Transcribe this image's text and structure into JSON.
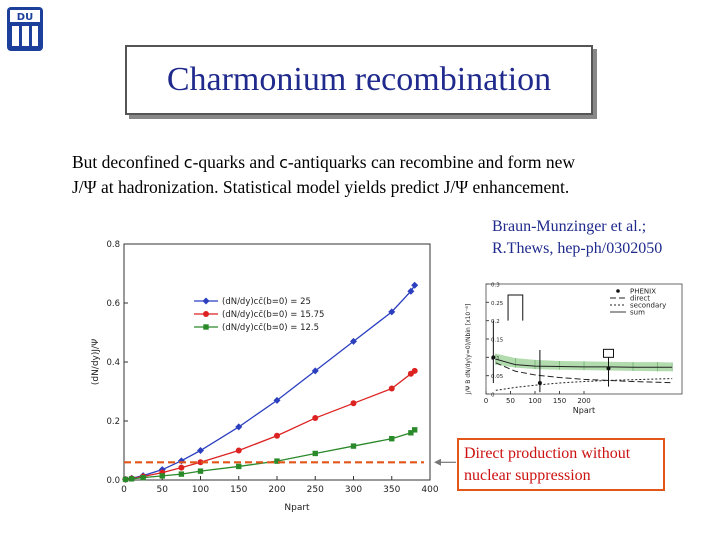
{
  "logo": {
    "letters": "DU"
  },
  "title": "Charmonium recombination",
  "intro": {
    "part1": "But deconfined ",
    "c1": "c",
    "part2": "-quarks and ",
    "c2": "c",
    "part3": "-antiquarks can recombine and form new",
    "line2": "J/Ψ at hadronization. Statistical model yields predict J/Ψ enhancement."
  },
  "citation": {
    "line1": "Braun-Munzinger et al.;",
    "line2": "R.Thews, hep-ph/0302050"
  },
  "callout": {
    "line1": "Direct production without",
    "line2": "nuclear suppression"
  },
  "colors": {
    "title": "#1f2a8c",
    "callout_border": "#e2561a",
    "callout_text": "#cc1111",
    "series_blue": "#2b3fbf",
    "series_red": "#dd2222",
    "series_green": "#2a8a2a"
  },
  "chart_data": [
    {
      "type": "line",
      "title": "",
      "xlabel": "Npart",
      "ylabel": "(dN/dy)J/Ψ",
      "xlim": [
        0,
        400
      ],
      "ylim": [
        0,
        0.8
      ],
      "xticks": [
        "0",
        "50",
        "100",
        "150",
        "200",
        "250",
        "300",
        "350",
        "400"
      ],
      "yticks": [
        "0.0",
        "0.2",
        "0.4",
        "0.6",
        "0.8"
      ],
      "legend_position": "upper-left",
      "reference_level": 0.06,
      "series": [
        {
          "name": "(dN/dy)cc̄(b=0) = 25",
          "marker": "diamond",
          "x": [
            2,
            10,
            25,
            50,
            75,
            100,
            150,
            200,
            250,
            300,
            350,
            375,
            380
          ],
          "y": [
            0.002,
            0.006,
            0.015,
            0.035,
            0.065,
            0.1,
            0.18,
            0.27,
            0.37,
            0.47,
            0.57,
            0.64,
            0.66
          ]
        },
        {
          "name": "(dN/dy)cc̄(b=0) = 15.75",
          "marker": "circle",
          "x": [
            2,
            10,
            25,
            50,
            75,
            100,
            150,
            200,
            250,
            300,
            350,
            375,
            380
          ],
          "y": [
            0.002,
            0.005,
            0.012,
            0.025,
            0.042,
            0.06,
            0.1,
            0.15,
            0.21,
            0.26,
            0.31,
            0.36,
            0.37
          ]
        },
        {
          "name": "(dN/dy)cc̄(b=0) = 12.5",
          "marker": "square",
          "x": [
            2,
            10,
            25,
            50,
            75,
            100,
            150,
            200,
            250,
            300,
            350,
            375,
            380
          ],
          "y": [
            0.002,
            0.004,
            0.008,
            0.014,
            0.02,
            0.03,
            0.046,
            0.064,
            0.09,
            0.115,
            0.14,
            0.16,
            0.17
          ]
        }
      ]
    },
    {
      "type": "line",
      "title": "",
      "xlabel": "Npart",
      "ylabel": "J/Ψ B dN/dy(y=0)/Nbin [x10⁻⁶]",
      "xlim": [
        0,
        400
      ],
      "ylim": [
        0,
        0.3
      ],
      "xticks": [
        "0",
        "50",
        "100",
        "150",
        "200"
      ],
      "yticks": [
        "0.3",
        "0.25",
        "0.2",
        "0.15",
        "0.1",
        "0.05",
        "0"
      ],
      "legend_position": "top-right",
      "legend": [
        "PHENIX",
        "direct",
        "secondary",
        "sum"
      ],
      "band": {
        "x": [
          20,
          60,
          100,
          150,
          200,
          250,
          300,
          350,
          380
        ],
        "low": [
          0.08,
          0.072,
          0.068,
          0.066,
          0.065,
          0.064,
          0.063,
          0.062,
          0.062
        ],
        "high": [
          0.11,
          0.098,
          0.093,
          0.09,
          0.089,
          0.088,
          0.087,
          0.087,
          0.086
        ]
      },
      "direct": {
        "x": [
          20,
          60,
          100,
          150,
          200,
          250,
          300,
          350,
          380
        ],
        "y": [
          0.085,
          0.062,
          0.052,
          0.045,
          0.04,
          0.037,
          0.034,
          0.032,
          0.031
        ]
      },
      "secondary": {
        "x": [
          20,
          60,
          100,
          150,
          200,
          250,
          300,
          350,
          380
        ],
        "y": [
          0.01,
          0.018,
          0.024,
          0.03,
          0.034,
          0.037,
          0.039,
          0.041,
          0.042
        ]
      },
      "sum": {
        "x": [
          20,
          60,
          100,
          150,
          200,
          250,
          300,
          350,
          380
        ],
        "y": [
          0.095,
          0.08,
          0.076,
          0.075,
          0.074,
          0.074,
          0.073,
          0.073,
          0.073
        ]
      },
      "phenix": [
        {
          "x": 15,
          "y": 0.1,
          "up": 0.2,
          "down": 0.03
        },
        {
          "x": 110,
          "y": 0.03,
          "up": 0.12,
          "down": 0.005
        },
        {
          "x": 250,
          "y": 0.07,
          "up": 0.1,
          "down": 0.02
        }
      ]
    }
  ]
}
